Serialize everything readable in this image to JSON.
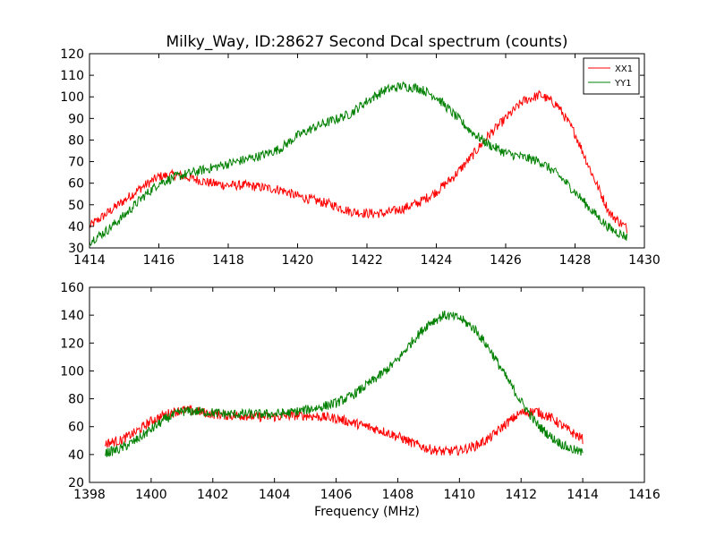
{
  "chart_data": [
    {
      "type": "line",
      "title": "Milky_Way, ID:28627 Second Dcal spectrum (counts)",
      "xlabel": "",
      "ylabel": "",
      "xlim": [
        1414,
        1430
      ],
      "ylim": [
        30,
        120
      ],
      "xticks": [
        "1414",
        "1416",
        "1418",
        "1420",
        "1422",
        "1424",
        "1426",
        "1428",
        "1430"
      ],
      "yticks": [
        "30",
        "40",
        "50",
        "60",
        "70",
        "80",
        "90",
        "100",
        "110",
        "120"
      ],
      "legend": "top-right",
      "series": [
        {
          "name": "XX1",
          "color": "#ff0000",
          "x": [
            1414.0,
            1414.5,
            1415.0,
            1415.5,
            1416.0,
            1416.5,
            1417.0,
            1417.5,
            1418.0,
            1418.5,
            1419.0,
            1419.5,
            1420.0,
            1420.5,
            1421.0,
            1421.5,
            1422.0,
            1422.5,
            1423.0,
            1423.5,
            1424.0,
            1424.5,
            1425.0,
            1425.5,
            1426.0,
            1426.5,
            1427.0,
            1427.5,
            1428.0,
            1428.5,
            1429.0,
            1429.5
          ],
          "values": [
            40,
            46,
            52,
            58,
            63,
            64,
            62,
            60,
            59,
            59,
            58,
            57,
            54,
            52,
            50,
            47,
            46,
            46,
            48,
            51,
            56,
            63,
            72,
            82,
            90,
            98,
            101,
            96,
            83,
            64,
            46,
            39
          ]
        },
        {
          "name": "YY1",
          "color": "#008000",
          "x": [
            1414.0,
            1414.5,
            1415.0,
            1415.5,
            1416.0,
            1416.5,
            1417.0,
            1417.5,
            1418.0,
            1418.5,
            1419.0,
            1419.5,
            1420.0,
            1420.5,
            1421.0,
            1421.5,
            1422.0,
            1422.5,
            1423.0,
            1423.5,
            1424.0,
            1424.5,
            1425.0,
            1425.5,
            1426.0,
            1426.5,
            1427.0,
            1427.5,
            1428.0,
            1428.5,
            1429.0,
            1429.5
          ],
          "values": [
            33,
            38,
            45,
            53,
            60,
            63,
            65,
            67,
            69,
            71,
            73,
            76,
            82,
            86,
            89,
            92,
            98,
            103,
            105,
            104,
            100,
            92,
            84,
            78,
            74,
            72,
            70,
            64,
            56,
            47,
            39,
            35
          ]
        }
      ]
    },
    {
      "type": "line",
      "title": "",
      "xlabel": "Frequency (MHz)",
      "ylabel": "",
      "xlim": [
        1398,
        1416
      ],
      "ylim": [
        20,
        160
      ],
      "xticks": [
        "1398",
        "1400",
        "1402",
        "1404",
        "1406",
        "1408",
        "1410",
        "1412",
        "1414",
        "1416"
      ],
      "yticks": [
        "20",
        "40",
        "60",
        "80",
        "100",
        "120",
        "140",
        "160"
      ],
      "series": [
        {
          "color": "#ff0000",
          "x": [
            1398.5,
            1399.0,
            1399.5,
            1400.0,
            1400.5,
            1401.0,
            1401.5,
            1402.0,
            1402.5,
            1403.0,
            1403.5,
            1404.0,
            1404.5,
            1405.0,
            1405.5,
            1406.0,
            1406.5,
            1407.0,
            1407.5,
            1408.0,
            1408.5,
            1409.0,
            1409.5,
            1410.0,
            1410.5,
            1411.0,
            1411.5,
            1412.0,
            1412.5,
            1413.0,
            1413.5,
            1414.0
          ],
          "values": [
            48,
            50,
            56,
            64,
            69,
            72,
            71,
            69,
            68,
            68,
            67,
            67,
            68,
            68,
            67,
            66,
            63,
            60,
            57,
            53,
            48,
            44,
            42,
            43,
            46,
            52,
            62,
            70,
            71,
            66,
            58,
            51
          ]
        },
        {
          "color": "#008000",
          "x": [
            1398.5,
            1399.0,
            1399.5,
            1400.0,
            1400.5,
            1401.0,
            1401.5,
            1402.0,
            1402.5,
            1403.0,
            1403.5,
            1404.0,
            1404.5,
            1405.0,
            1405.5,
            1406.0,
            1406.5,
            1407.0,
            1407.5,
            1408.0,
            1408.5,
            1409.0,
            1409.5,
            1410.0,
            1410.5,
            1411.0,
            1411.5,
            1412.0,
            1412.5,
            1413.0,
            1413.5,
            1414.0
          ],
          "values": [
            41,
            44,
            50,
            58,
            66,
            71,
            71,
            70,
            69,
            69,
            69,
            69,
            70,
            72,
            74,
            77,
            82,
            90,
            98,
            108,
            122,
            134,
            140,
            138,
            130,
            115,
            96,
            78,
            62,
            52,
            45,
            41
          ]
        }
      ]
    }
  ]
}
